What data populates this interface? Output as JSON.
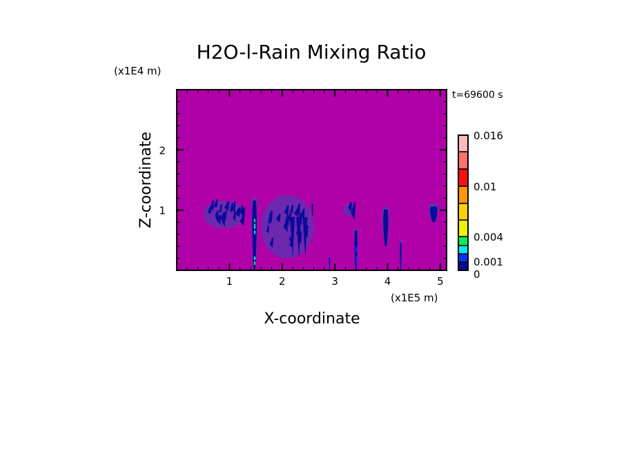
{
  "chart_data": {
    "type": "heatmap",
    "title": "H2O-l-Rain Mixing Ratio",
    "xlabel": "X-coordinate",
    "ylabel": "Z-coordinate",
    "x_unit": "(x1E5 m)",
    "y_unit": "(x1E4 m)",
    "time_label": "t=69600 s",
    "xlim": [
      0,
      5.12
    ],
    "ylim": [
      0,
      3.0
    ],
    "xticks": [
      1,
      2,
      3,
      4,
      5
    ],
    "xtick_labels": [
      "1",
      "2",
      "3",
      "4",
      "5"
    ],
    "yticks": [
      1,
      2
    ],
    "ytick_labels": [
      "1",
      "2"
    ],
    "background_color": "#b000a8",
    "colorbar": {
      "levels": [
        0,
        0.001,
        0.002,
        0.003,
        0.004,
        0.006,
        0.008,
        0.01,
        0.012,
        0.014,
        0.016
      ],
      "colors": [
        "#0a0a9a",
        "#0a30ff",
        "#00e8f0",
        "#00f050",
        "#f0f000",
        "#ffd000",
        "#ff9800",
        "#ff1010",
        "#ff7070",
        "#ffb8c0"
      ],
      "labeled_levels": [
        0.016,
        0.01,
        0.004,
        0.001,
        0
      ],
      "labels": [
        "0.016",
        "0.01",
        "0.004",
        "0.001",
        "0"
      ]
    },
    "rain_features": [
      {
        "x": [
          0.5,
          1.3
        ],
        "z": [
          0.7,
          1.15
        ],
        "max": 0.001
      },
      {
        "x": [
          1.4,
          1.55
        ],
        "z": [
          0,
          1.25
        ],
        "max": 0.004
      },
      {
        "x": [
          1.6,
          2.6
        ],
        "z": [
          0.2,
          1.25
        ],
        "max": 0.001
      },
      {
        "x": [
          2.55,
          2.6
        ],
        "z": [
          0.9,
          1.2
        ],
        "max": 0.001
      },
      {
        "x": [
          3.15,
          3.4
        ],
        "z": [
          0.9,
          1.1
        ],
        "max": 0.001
      },
      {
        "x": [
          3.35,
          3.45
        ],
        "z": [
          0,
          0.75
        ],
        "max": 0.002
      },
      {
        "x": [
          3.88,
          4.05
        ],
        "z": [
          0.4,
          1.1
        ],
        "max": 0.001
      },
      {
        "x": [
          4.22,
          4.28
        ],
        "z": [
          0,
          0.55
        ],
        "max": 0.001
      },
      {
        "x": [
          4.75,
          5.0
        ],
        "z": [
          0.8,
          1.15
        ],
        "max": 0.001
      },
      {
        "x": [
          2.88,
          2.92
        ],
        "z": [
          0,
          0.3
        ],
        "max": 0.001
      }
    ]
  }
}
